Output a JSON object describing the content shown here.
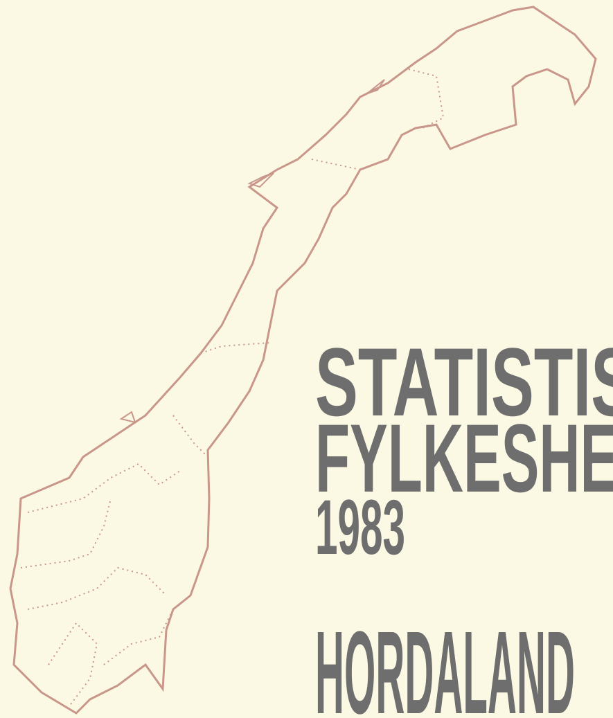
{
  "cover": {
    "title_line_1": "STATISTIS",
    "title_line_2": "FYLKESHEI",
    "year": "1983",
    "county": "HORDALAND"
  }
}
